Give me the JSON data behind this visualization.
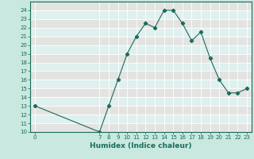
{
  "xlabel": "Humidex (Indice chaleur)",
  "x_values": [
    0,
    7,
    8,
    9,
    10,
    11,
    12,
    13,
    14,
    15,
    16,
    17,
    18,
    19,
    20,
    21,
    22,
    23
  ],
  "y_values": [
    13,
    10,
    13,
    16,
    19,
    21,
    22.5,
    22,
    24,
    24,
    22.5,
    20.5,
    21.5,
    18.5,
    16,
    14.5,
    14.5,
    15
  ],
  "line_color": "#1a6b5a",
  "marker": "D",
  "marker_size": 2.2,
  "bg_color": "#c8e8e0",
  "plot_bg_color": "#dff0ee",
  "grid_color": "#ffffff",
  "alt_band_color": "#e8d8d8",
  "ylim": [
    10,
    25
  ],
  "xlim": [
    -0.5,
    23.5
  ],
  "yticks": [
    10,
    11,
    12,
    13,
    14,
    15,
    16,
    17,
    18,
    19,
    20,
    21,
    22,
    23,
    24
  ],
  "xticks": [
    0,
    7,
    8,
    9,
    10,
    11,
    12,
    13,
    14,
    15,
    16,
    17,
    18,
    19,
    20,
    21,
    22,
    23
  ],
  "tick_fontsize": 5.0,
  "label_fontsize": 6.5,
  "axis_color": "#1a6b5a",
  "spine_color": "#1a6b5a"
}
